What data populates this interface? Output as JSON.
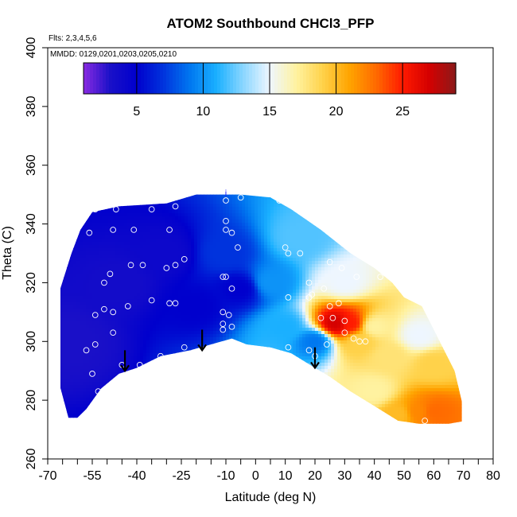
{
  "chart_data": {
    "type": "heatmap",
    "title": "ATOM2 Southbound CHCl3_PFP",
    "xlabel": "Latitude (deg N)",
    "ylabel": "Theta (C)",
    "flights_note": "Flts: 2,3,4,5,6",
    "dates_note": "MMDD: 0129,0201,0203,0205,0210",
    "xlim": [
      -70,
      80
    ],
    "ylim": [
      260,
      400
    ],
    "x_ticks": [
      -70,
      -65,
      -60,
      -55,
      -50,
      -45,
      -40,
      -35,
      -30,
      -25,
      -20,
      -15,
      -10,
      -5,
      0,
      5,
      10,
      15,
      20,
      25,
      30,
      35,
      40,
      45,
      50,
      55,
      60,
      65,
      70,
      75,
      80
    ],
    "x_tick_labels": [
      "-70",
      "",
      "",
      "-55",
      "",
      "",
      "-40",
      "",
      "",
      "-25",
      "",
      "",
      "-10",
      "",
      "0",
      "",
      "10",
      "",
      "20",
      "",
      "30",
      "",
      "40",
      "",
      "50",
      "",
      "60",
      "",
      "70",
      "",
      "80"
    ],
    "y_ticks": [
      260,
      280,
      300,
      320,
      340,
      360,
      380,
      400
    ],
    "y_tick_labels": [
      "260",
      "280",
      "300",
      "320",
      "340",
      "360",
      "380",
      "400"
    ],
    "colorbar": {
      "range": [
        1,
        29
      ],
      "ticks": [
        5,
        10,
        15,
        20,
        25
      ],
      "tick_labels": [
        "5",
        "10",
        "15",
        "20",
        "25"
      ],
      "colors": [
        "#8a2be2",
        "#1a10c8",
        "#0000cd",
        "#0033dd",
        "#0077f0",
        "#1ab0ff",
        "#8ad6ff",
        "#eef6ff",
        "#fff2a0",
        "#ffd24a",
        "#ffa400",
        "#ff6a00",
        "#ff1a00",
        "#d40000",
        "#8b1a1a"
      ]
    },
    "grid": false,
    "legend": "top",
    "boundary_top": [
      {
        "lat": -67,
        "theta": 314
      },
      {
        "lat": -62,
        "theta": 330
      },
      {
        "lat": -59,
        "theta": 338
      },
      {
        "lat": -55,
        "theta": 344
      },
      {
        "lat": -46,
        "theta": 346
      },
      {
        "lat": -30,
        "theta": 347
      },
      {
        "lat": -20,
        "theta": 350
      },
      {
        "lat": -5,
        "theta": 350
      },
      {
        "lat": 5,
        "theta": 349
      },
      {
        "lat": 12,
        "theta": 345
      },
      {
        "lat": 22,
        "theta": 338
      },
      {
        "lat": 32,
        "theta": 330
      },
      {
        "lat": 40,
        "theta": 325
      },
      {
        "lat": 46,
        "theta": 320
      },
      {
        "lat": 50,
        "theta": 315
      },
      {
        "lat": 56,
        "theta": 312
      },
      {
        "lat": 62,
        "theta": 300
      },
      {
        "lat": 67,
        "theta": 290
      },
      {
        "lat": 71,
        "theta": 273
      }
    ],
    "boundary_bottom": [
      {
        "lat": 71,
        "theta": 273
      },
      {
        "lat": 65,
        "theta": 272
      },
      {
        "lat": 55,
        "theta": 272
      },
      {
        "lat": 48,
        "theta": 273
      },
      {
        "lat": 40,
        "theta": 278
      },
      {
        "lat": 32,
        "theta": 283
      },
      {
        "lat": 25,
        "theta": 288
      },
      {
        "lat": 20,
        "theta": 291
      },
      {
        "lat": 12,
        "theta": 296
      },
      {
        "lat": 5,
        "theta": 298
      },
      {
        "lat": -3,
        "theta": 299
      },
      {
        "lat": -8,
        "theta": 301
      },
      {
        "lat": -15,
        "theta": 299
      },
      {
        "lat": -22,
        "theta": 297
      },
      {
        "lat": -32,
        "theta": 295
      },
      {
        "lat": -40,
        "theta": 291
      },
      {
        "lat": -46,
        "theta": 289
      },
      {
        "lat": -52,
        "theta": 284
      },
      {
        "lat": -57,
        "theta": 277
      },
      {
        "lat": -60,
        "theta": 274
      },
      {
        "lat": -63,
        "theta": 274
      },
      {
        "lat": -67,
        "theta": 289
      }
    ],
    "field_centers": [
      {
        "lat": -62,
        "theta": 300,
        "value": 3
      },
      {
        "lat": -45,
        "theta": 320,
        "value": 3.5
      },
      {
        "lat": -30,
        "theta": 330,
        "value": 4
      },
      {
        "lat": -20,
        "theta": 312,
        "value": 5
      },
      {
        "lat": -10,
        "theta": 330,
        "value": 7
      },
      {
        "lat": -5,
        "theta": 318,
        "value": 5
      },
      {
        "lat": 5,
        "theta": 320,
        "value": 10
      },
      {
        "lat": 10,
        "theta": 305,
        "value": 11
      },
      {
        "lat": 15,
        "theta": 335,
        "value": 12
      },
      {
        "lat": 20,
        "theta": 300,
        "value": 9
      },
      {
        "lat": 27,
        "theta": 306,
        "value": 27
      },
      {
        "lat": 32,
        "theta": 306,
        "value": 25
      },
      {
        "lat": 35,
        "theta": 300,
        "value": 19
      },
      {
        "lat": 30,
        "theta": 320,
        "value": 15
      },
      {
        "lat": 40,
        "theta": 305,
        "value": 17
      },
      {
        "lat": 45,
        "theta": 295,
        "value": 18
      },
      {
        "lat": 55,
        "theta": 302,
        "value": 15
      },
      {
        "lat": 60,
        "theta": 292,
        "value": 19
      },
      {
        "lat": 55,
        "theta": 276,
        "value": 22
      },
      {
        "lat": 60,
        "theta": 276,
        "value": 23
      },
      {
        "lat": 48,
        "theta": 275,
        "value": 20
      },
      {
        "lat": 40,
        "theta": 283,
        "value": 17
      }
    ],
    "sample_points": [
      {
        "lat": -54,
        "theta": 345
      },
      {
        "lat": -47,
        "theta": 345
      },
      {
        "lat": -35,
        "theta": 345
      },
      {
        "lat": -27,
        "theta": 346
      },
      {
        "lat": -10,
        "theta": 348
      },
      {
        "lat": -5,
        "theta": 349
      },
      {
        "lat": 8,
        "theta": 348
      },
      {
        "lat": -56,
        "theta": 337
      },
      {
        "lat": -48,
        "theta": 338
      },
      {
        "lat": -41,
        "theta": 338
      },
      {
        "lat": -29,
        "theta": 338
      },
      {
        "lat": -10,
        "theta": 338
      },
      {
        "lat": -8,
        "theta": 337
      },
      {
        "lat": -10,
        "theta": 341
      },
      {
        "lat": -42,
        "theta": 326
      },
      {
        "lat": -38,
        "theta": 326
      },
      {
        "lat": -30,
        "theta": 325
      },
      {
        "lat": -27,
        "theta": 326
      },
      {
        "lat": -24,
        "theta": 328
      },
      {
        "lat": -49,
        "theta": 323
      },
      {
        "lat": -6,
        "theta": 332
      },
      {
        "lat": 10,
        "theta": 332
      },
      {
        "lat": 11,
        "theta": 330
      },
      {
        "lat": 15,
        "theta": 330
      },
      {
        "lat": 25,
        "theta": 327
      },
      {
        "lat": 29,
        "theta": 325
      },
      {
        "lat": 34,
        "theta": 322
      },
      {
        "lat": 42,
        "theta": 322
      },
      {
        "lat": -51,
        "theta": 320
      },
      {
        "lat": -11,
        "theta": 322
      },
      {
        "lat": -10,
        "theta": 322
      },
      {
        "lat": -8,
        "theta": 318
      },
      {
        "lat": 18,
        "theta": 320
      },
      {
        "lat": 23,
        "theta": 318
      },
      {
        "lat": -51,
        "theta": 311
      },
      {
        "lat": -43,
        "theta": 312
      },
      {
        "lat": -35,
        "theta": 314
      },
      {
        "lat": -29,
        "theta": 313
      },
      {
        "lat": -27,
        "theta": 313
      },
      {
        "lat": 11,
        "theta": 315
      },
      {
        "lat": 18,
        "theta": 315
      },
      {
        "lat": 19,
        "theta": 316
      },
      {
        "lat": 25,
        "theta": 312
      },
      {
        "lat": 28,
        "theta": 313
      },
      {
        "lat": -54,
        "theta": 309
      },
      {
        "lat": -48,
        "theta": 310
      },
      {
        "lat": -11,
        "theta": 310
      },
      {
        "lat": -9,
        "theta": 309
      },
      {
        "lat": 22,
        "theta": 308
      },
      {
        "lat": 26,
        "theta": 308
      },
      {
        "lat": 30,
        "theta": 307
      },
      {
        "lat": -57,
        "theta": 297
      },
      {
        "lat": -54,
        "theta": 299
      },
      {
        "lat": -48,
        "theta": 303
      },
      {
        "lat": -11,
        "theta": 306
      },
      {
        "lat": -11,
        "theta": 304
      },
      {
        "lat": -8,
        "theta": 305
      },
      {
        "lat": 11,
        "theta": 298
      },
      {
        "lat": 18,
        "theta": 297
      },
      {
        "lat": 20,
        "theta": 295
      },
      {
        "lat": 24,
        "theta": 299
      },
      {
        "lat": 30,
        "theta": 303
      },
      {
        "lat": 33,
        "theta": 301
      },
      {
        "lat": 35,
        "theta": 300
      },
      {
        "lat": 37,
        "theta": 300
      },
      {
        "lat": -67,
        "theta": 293
      },
      {
        "lat": -67,
        "theta": 288
      },
      {
        "lat": -55,
        "theta": 289
      },
      {
        "lat": -53,
        "theta": 283
      },
      {
        "lat": -45,
        "theta": 292
      },
      {
        "lat": -39,
        "theta": 292
      },
      {
        "lat": -32,
        "theta": 295
      },
      {
        "lat": -24,
        "theta": 298
      },
      {
        "lat": 57,
        "theta": 273
      }
    ],
    "annotation_arrows": [
      {
        "lat": -44,
        "theta_from": 297,
        "theta_to": 290
      },
      {
        "lat": -18,
        "theta_from": 304,
        "theta_to": 297
      },
      {
        "lat": 20,
        "theta_from": 298,
        "theta_to": 291
      }
    ],
    "top_marker": {
      "lat": -10,
      "theta": 350,
      "label": "i"
    }
  }
}
